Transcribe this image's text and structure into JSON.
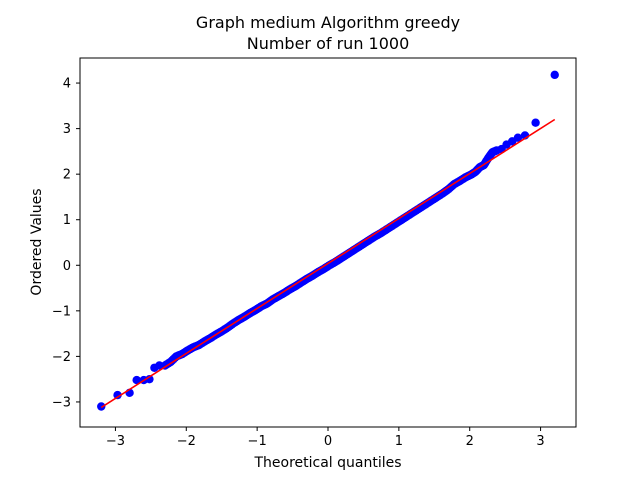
{
  "chart_data": {
    "type": "scatter",
    "title": [
      "Graph medium Algorithm greedy",
      "Number of run 1000"
    ],
    "xlabel": "Theoretical quantiles",
    "ylabel": "Ordered Values",
    "xlim": [
      -3.5,
      3.5
    ],
    "ylim": [
      -3.55,
      4.55
    ],
    "xticks": [
      -3,
      -2,
      -1,
      0,
      1,
      2,
      3
    ],
    "yticks": [
      -3,
      -2,
      -1,
      0,
      1,
      2,
      3,
      4
    ],
    "tick_labels_x": [
      "−3",
      "−2",
      "−1",
      "0",
      "1",
      "2",
      "3"
    ],
    "tick_labels_y": [
      "−3",
      "−2",
      "−1",
      "0",
      "1",
      "2",
      "3",
      "4"
    ],
    "grid": false,
    "fit_line": {
      "color": "#ff0000",
      "x": [
        -3.2,
        3.2
      ],
      "y": [
        -3.12,
        3.2
      ]
    },
    "series": [
      {
        "name": "ordered values",
        "color": "#0000ff",
        "points": [
          [
            -3.2,
            -3.1
          ],
          [
            -2.97,
            -2.85
          ],
          [
            -2.8,
            -2.8
          ],
          [
            -2.7,
            -2.52
          ],
          [
            -2.6,
            -2.52
          ],
          [
            -2.52,
            -2.5
          ],
          [
            -2.45,
            -2.25
          ],
          [
            -2.38,
            -2.2
          ],
          [
            -2.3,
            -2.2
          ],
          [
            -2.22,
            -2.12
          ],
          [
            -2.14,
            -2.0
          ],
          [
            -2.06,
            -1.95
          ],
          [
            -1.98,
            -1.87
          ],
          [
            -1.9,
            -1.8
          ],
          [
            -1.82,
            -1.75
          ],
          [
            -1.74,
            -1.67
          ],
          [
            -1.66,
            -1.6
          ],
          [
            -1.58,
            -1.52
          ],
          [
            -1.5,
            -1.45
          ],
          [
            -1.42,
            -1.37
          ],
          [
            -1.34,
            -1.28
          ],
          [
            -1.26,
            -1.2
          ],
          [
            -1.18,
            -1.13
          ],
          [
            -1.1,
            -1.05
          ],
          [
            -1.02,
            -0.98
          ],
          [
            -0.94,
            -0.9
          ],
          [
            -0.86,
            -0.84
          ],
          [
            -0.78,
            -0.75
          ],
          [
            -0.7,
            -0.68
          ],
          [
            -0.62,
            -0.61
          ],
          [
            -0.54,
            -0.53
          ],
          [
            -0.46,
            -0.46
          ],
          [
            -0.38,
            -0.38
          ],
          [
            -0.3,
            -0.3
          ],
          [
            -0.22,
            -0.23
          ],
          [
            -0.14,
            -0.15
          ],
          [
            -0.06,
            -0.08
          ],
          [
            0.02,
            0.0
          ],
          [
            0.1,
            0.07
          ],
          [
            0.18,
            0.15
          ],
          [
            0.26,
            0.23
          ],
          [
            0.34,
            0.31
          ],
          [
            0.42,
            0.39
          ],
          [
            0.5,
            0.47
          ],
          [
            0.58,
            0.55
          ],
          [
            0.66,
            0.63
          ],
          [
            0.74,
            0.7
          ],
          [
            0.82,
            0.78
          ],
          [
            0.9,
            0.86
          ],
          [
            0.98,
            0.94
          ],
          [
            1.06,
            1.02
          ],
          [
            1.14,
            1.1
          ],
          [
            1.22,
            1.18
          ],
          [
            1.3,
            1.26
          ],
          [
            1.38,
            1.34
          ],
          [
            1.46,
            1.42
          ],
          [
            1.54,
            1.5
          ],
          [
            1.62,
            1.58
          ],
          [
            1.7,
            1.67
          ],
          [
            1.78,
            1.78
          ],
          [
            1.86,
            1.85
          ],
          [
            1.94,
            1.93
          ],
          [
            2.02,
            1.99
          ],
          [
            2.08,
            2.05
          ],
          [
            2.14,
            2.15
          ],
          [
            2.2,
            2.2
          ],
          [
            2.26,
            2.35
          ],
          [
            2.32,
            2.48
          ],
          [
            2.38,
            2.52
          ],
          [
            2.45,
            2.55
          ],
          [
            2.52,
            2.65
          ],
          [
            2.6,
            2.72
          ],
          [
            2.68,
            2.8
          ],
          [
            2.78,
            2.85
          ],
          [
            2.93,
            3.13
          ],
          [
            3.2,
            4.18
          ]
        ]
      }
    ]
  }
}
